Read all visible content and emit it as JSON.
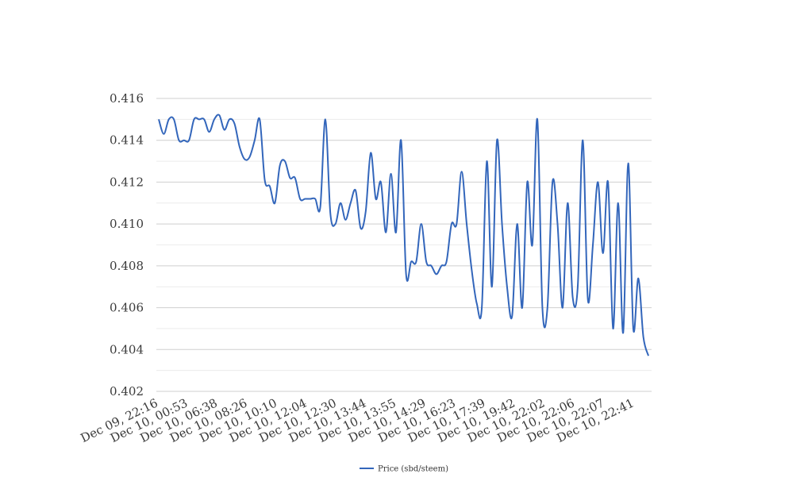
{
  "chart_data": {
    "type": "line",
    "title": "",
    "xlabel": "",
    "ylabel": "",
    "ylim": [
      0.402,
      0.416
    ],
    "y_ticks": [
      "0.402",
      "0.404",
      "0.406",
      "0.408",
      "0.410",
      "0.412",
      "0.414",
      "0.416"
    ],
    "x_tick_labels": [
      "Dec 09, 22:16",
      "Dec 10, 00:53",
      "Dec 10, 06:38",
      "Dec 10, 08:26",
      "Dec 10, 10:10",
      "Dec 10, 12:04",
      "Dec 10, 12:30",
      "Dec 10, 13:44",
      "Dec 10, 13:55",
      "Dec 10, 14:29",
      "Dec 10, 16:23",
      "Dec 10, 17:39",
      "Dec 10, 19:42",
      "Dec 10, 22:02",
      "Dec 10, 22:06",
      "Dec 10, 22:07",
      "Dec 10, 22:41"
    ],
    "grid": true,
    "legend_position": "bottom",
    "series": [
      {
        "name": "Price (sbd/steem)",
        "color": "#3366bb",
        "values": [
          0.415,
          0.4143,
          0.415,
          0.415,
          0.414,
          0.414,
          0.414,
          0.415,
          0.415,
          0.415,
          0.4144,
          0.415,
          0.4152,
          0.4145,
          0.415,
          0.4148,
          0.4137,
          0.4131,
          0.4132,
          0.414,
          0.415,
          0.4121,
          0.4118,
          0.411,
          0.4128,
          0.413,
          0.4122,
          0.4122,
          0.4112,
          0.4112,
          0.4112,
          0.4112,
          0.4108,
          0.415,
          0.4105,
          0.41,
          0.411,
          0.4102,
          0.411,
          0.4116,
          0.4098,
          0.4106,
          0.4134,
          0.4112,
          0.412,
          0.4096,
          0.4124,
          0.4096,
          0.414,
          0.4076,
          0.4082,
          0.4082,
          0.41,
          0.4082,
          0.408,
          0.4076,
          0.408,
          0.4082,
          0.41,
          0.41,
          0.4125,
          0.41,
          0.4078,
          0.4062,
          0.406,
          0.413,
          0.407,
          0.414,
          0.41,
          0.407,
          0.4056,
          0.41,
          0.406,
          0.412,
          0.409,
          0.415,
          0.406,
          0.406,
          0.412,
          0.41,
          0.406,
          0.411,
          0.4065,
          0.407,
          0.414,
          0.4064,
          0.409,
          0.412,
          0.4086,
          0.412,
          0.405,
          0.411,
          0.4048,
          0.4129,
          0.405,
          0.4074,
          0.4046,
          0.4037
        ]
      }
    ]
  }
}
